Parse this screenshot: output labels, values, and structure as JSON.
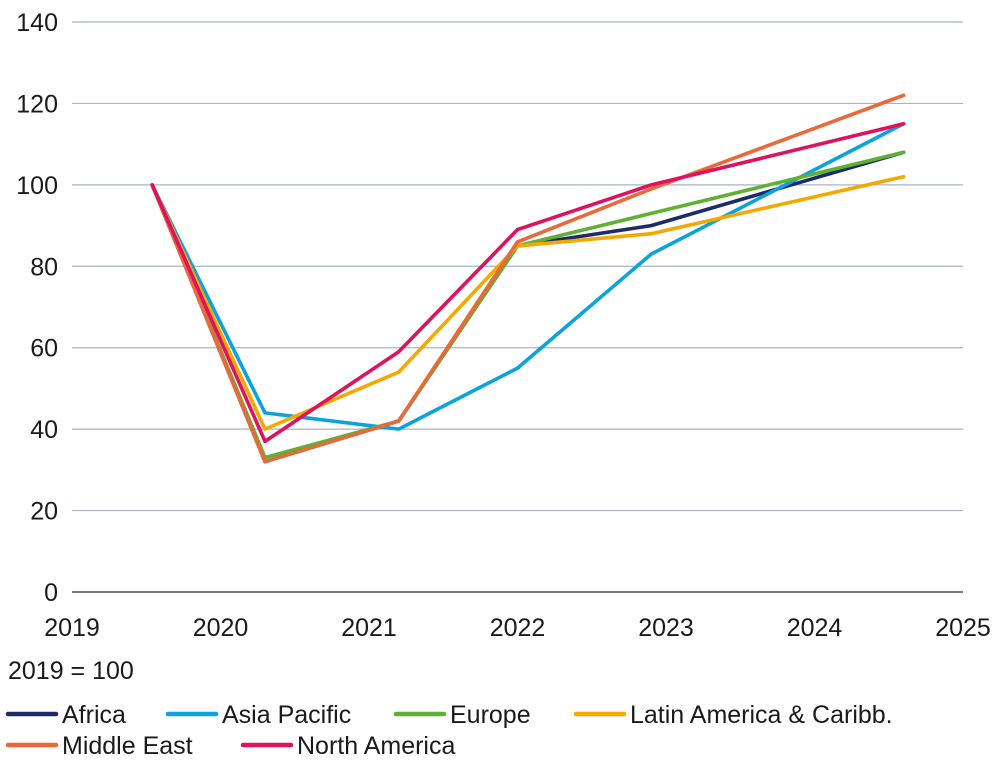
{
  "chart_data": {
    "type": "line",
    "title": "",
    "xlabel": "",
    "ylabel": "",
    "note": "2019 = 100",
    "xlim": [
      2019,
      2025
    ],
    "ylim": [
      0,
      140
    ],
    "x_ticks": [
      "2019",
      "2020",
      "2021",
      "2022",
      "2023",
      "2024",
      "2025"
    ],
    "y_ticks": [
      "0",
      "20",
      "40",
      "60",
      "80",
      "100",
      "120",
      "140"
    ],
    "grid": true,
    "legend_position": "bottom",
    "x": [
      2019.54,
      2020.3,
      2021.2,
      2022.0,
      2022.9,
      2024.6
    ],
    "series": [
      {
        "name": "Africa",
        "color": "#1f2a6b",
        "values": [
          100,
          32,
          42,
          85,
          90,
          108
        ]
      },
      {
        "name": "Asia Pacific",
        "color": "#0aa3de",
        "values": [
          100,
          44,
          40,
          55,
          83,
          115
        ]
      },
      {
        "name": "Europe",
        "color": "#5fb033",
        "values": [
          100,
          33,
          42,
          85,
          93,
          108
        ]
      },
      {
        "name": "Latin America & Caribb.",
        "color": "#f5a800",
        "values": [
          100,
          40,
          54,
          85,
          88,
          102
        ]
      },
      {
        "name": "Middle East",
        "color": "#e8693a",
        "values": [
          100,
          32,
          42,
          86,
          99,
          122
        ]
      },
      {
        "name": "North America",
        "color": "#e0115f",
        "values": [
          100,
          37,
          59,
          89,
          100,
          115
        ]
      }
    ]
  }
}
